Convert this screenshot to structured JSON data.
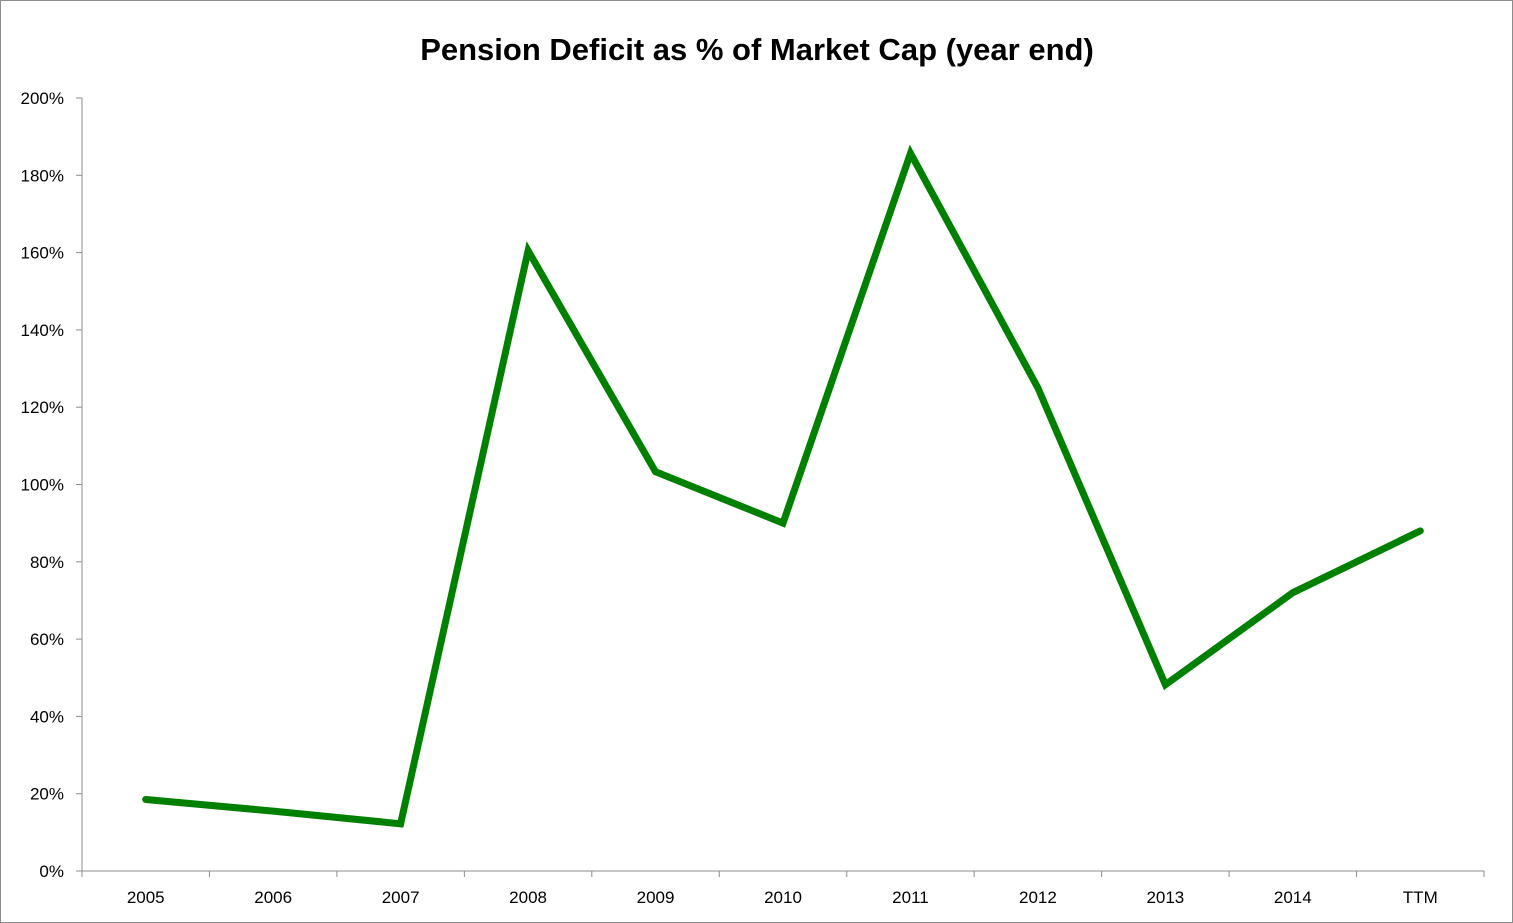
{
  "chart_data": {
    "type": "line",
    "title": "Pension Deficit as % of Market Cap (year end)",
    "xlabel": "",
    "ylabel": "",
    "categories": [
      "2005",
      "2006",
      "2007",
      "2008",
      "2009",
      "2010",
      "2011",
      "2012",
      "2013",
      "2014",
      "TTM"
    ],
    "series": [
      {
        "values": [
          18.5,
          15.5,
          12.2,
          160.5,
          103.3,
          90.0,
          185.7,
          125.0,
          48.2,
          72.0,
          88.0
        ],
        "color": "#008000"
      }
    ],
    "ylim": [
      0,
      200
    ],
    "yticks": [
      "0%",
      "20%",
      "40%",
      "60%",
      "80%",
      "100%",
      "120%",
      "140%",
      "160%",
      "180%",
      "200%"
    ],
    "grid": false,
    "legend": "none"
  }
}
